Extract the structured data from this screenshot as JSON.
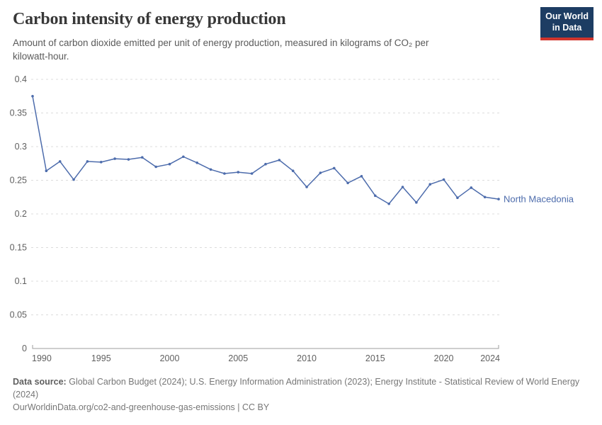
{
  "header": {
    "title": "Carbon intensity of energy production",
    "subtitle_lines": [
      "Amount of carbon dioxide emitted per unit of energy production, measured in kilograms of CO₂ per",
      "kilowatt-hour."
    ],
    "logo_line1": "Our World",
    "logo_line2": "in Data"
  },
  "chart_data": {
    "type": "line",
    "title": "Carbon intensity of energy production",
    "xlabel": "",
    "ylabel": "",
    "xlim": [
      1990,
      2024
    ],
    "ylim": [
      0,
      0.4
    ],
    "xticks": [
      1990,
      1995,
      2000,
      2005,
      2010,
      2015,
      2020,
      2024
    ],
    "yticks": [
      0,
      0.05,
      0.1,
      0.15,
      0.2,
      0.25,
      0.3,
      0.35,
      0.4
    ],
    "grid": true,
    "legend_position": "end-of-line",
    "x": [
      1990,
      1991,
      1992,
      1993,
      1994,
      1995,
      1996,
      1997,
      1998,
      1999,
      2000,
      2001,
      2002,
      2003,
      2004,
      2005,
      2006,
      2007,
      2008,
      2009,
      2010,
      2011,
      2012,
      2013,
      2014,
      2015,
      2016,
      2017,
      2018,
      2019,
      2020,
      2021,
      2022,
      2023,
      2024
    ],
    "series": [
      {
        "name": "North Macedonia",
        "values": [
          0.375,
          0.264,
          0.278,
          0.251,
          0.278,
          0.277,
          0.282,
          0.281,
          0.284,
          0.27,
          0.274,
          0.285,
          0.276,
          0.266,
          0.26,
          0.262,
          0.26,
          0.274,
          0.28,
          0.264,
          0.24,
          0.261,
          0.268,
          0.246,
          0.256,
          0.227,
          0.215,
          0.24,
          0.217,
          0.244,
          0.251,
          0.224,
          0.239,
          0.225,
          0.222
        ]
      }
    ]
  },
  "footer": {
    "source_label": "Data source:",
    "source_text": "Global Carbon Budget (2024); U.S. Energy Information Administration (2023); Energy Institute - Statistical Review of World Energy (2024)",
    "link": "OurWorldinData.org/co2-and-greenhouse-gas-emissions",
    "separator": "|",
    "license": "CC BY"
  },
  "colors": {
    "line": "#4d6cac",
    "grid": "#dcdcdc",
    "axis": "#9e9e9e",
    "tick_text": "#606060",
    "title_text": "#383838",
    "subtitle_text": "#5a5a5a",
    "footer_text": "#777777",
    "logo_bg": "#1d3d63",
    "logo_red": "#d0342c"
  }
}
